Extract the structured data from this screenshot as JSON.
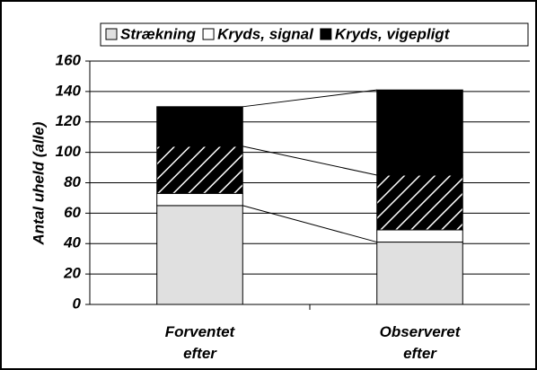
{
  "chart_data": {
    "type": "stacked_bar",
    "y_label": "Antal uheld (alle)",
    "categories": [
      "Forventet efter",
      "Observeret efter"
    ],
    "series": [
      {
        "name": "Strækning",
        "color": "#e0e0e0",
        "values": [
          65,
          41
        ],
        "connect": true
      },
      {
        "name": "Kryds, signal",
        "color": "#ffffff",
        "values": [
          8,
          8
        ],
        "connect": false
      },
      {
        "color": "#000000",
        "hatch": true,
        "values": [
          31,
          36
        ],
        "connect": true
      },
      {
        "name": "Kryds, vigepligt",
        "color": "#000000",
        "values": [
          26,
          56
        ],
        "connect": true
      }
    ],
    "ylim": [
      0,
      160
    ],
    "yticks": [
      0,
      20,
      40,
      60,
      80,
      100,
      120,
      140,
      160
    ],
    "grid": true,
    "legend": "top"
  }
}
